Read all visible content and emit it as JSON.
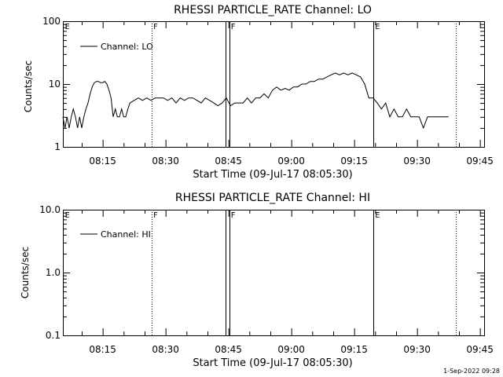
{
  "footer_timestamp": "1-Sep-2022 09:28",
  "chart_data": [
    {
      "type": "line",
      "title": "RHESSI PARTICLE_RATE Channel: LO",
      "xlabel": "Start Time (09-Jul-17 08:05:30)",
      "ylabel": "Counts/sec",
      "x_unit": "minutes after 08:05:30",
      "xlim": [
        0,
        100.5
      ],
      "yscale": "log",
      "ylim": [
        1,
        100
      ],
      "y_tick_labels": [
        {
          "value": 1,
          "label": "1"
        },
        {
          "value": 10,
          "label": "10"
        },
        {
          "value": 100,
          "label": "100"
        }
      ],
      "x_tick_labels": [
        {
          "value": 9.5,
          "label": "08:15"
        },
        {
          "value": 24.5,
          "label": "08:30"
        },
        {
          "value": 39.5,
          "label": "08:45"
        },
        {
          "value": 54.5,
          "label": "09:00"
        },
        {
          "value": 69.5,
          "label": "09:15"
        },
        {
          "value": 84.5,
          "label": "09:30"
        },
        {
          "value": 99.5,
          "label": "09:45"
        }
      ],
      "legend": {
        "position": "top-left",
        "entries": [
          "Channel: LO"
        ]
      },
      "series": [
        {
          "name": "Channel: LO",
          "x": [
            0,
            0.5,
            1,
            1.5,
            2,
            2.5,
            3,
            3.5,
            4,
            4.5,
            5,
            5.5,
            6,
            6.5,
            7,
            7.5,
            8,
            8.5,
            9,
            9.5,
            10,
            10.5,
            11,
            11.5,
            12,
            12.5,
            13,
            13.5,
            14,
            14.5,
            15,
            15.5,
            16,
            17,
            18,
            19,
            20,
            21,
            22,
            23,
            24,
            25,
            26,
            27,
            28,
            29,
            30,
            31,
            32,
            33,
            34,
            35,
            36,
            37,
            38,
            39,
            40,
            41,
            42,
            43,
            44,
            45,
            46,
            47,
            48,
            49,
            50,
            51,
            52,
            53,
            54,
            55,
            56,
            57,
            58,
            59,
            60,
            61,
            62,
            63,
            64,
            65,
            66,
            67,
            68,
            69,
            70,
            71,
            72,
            73,
            74,
            75,
            76,
            77,
            78,
            79,
            80,
            81,
            82,
            83,
            84,
            85,
            86,
            87,
            88,
            89,
            90,
            91,
            92
          ],
          "y": [
            3,
            2,
            3,
            2,
            3,
            4,
            3,
            2,
            3,
            2,
            3,
            4,
            5,
            7,
            9,
            10.5,
            11,
            11,
            10.5,
            10.5,
            11,
            10,
            8,
            6,
            3,
            4,
            3,
            3,
            4,
            3,
            3,
            4,
            5,
            5.5,
            6,
            5.5,
            6,
            5.5,
            6,
            6,
            6,
            5.5,
            6,
            5,
            6,
            5.5,
            6,
            6,
            5.5,
            5,
            6,
            5.5,
            5,
            4.5,
            5,
            6,
            4.5,
            5,
            5,
            5,
            6,
            5,
            6,
            6,
            7,
            6,
            8,
            9,
            8,
            8.5,
            8,
            9,
            9,
            10,
            10,
            11,
            11,
            12,
            12,
            13,
            14,
            15,
            14,
            15,
            14,
            15,
            14,
            13,
            10,
            6,
            6,
            5,
            4,
            5,
            3,
            4,
            3,
            3,
            4,
            3,
            3,
            3,
            2,
            3,
            3,
            3,
            3,
            3,
            3
          ]
        }
      ],
      "annotations": [
        {
          "label": "E",
          "x": 0.3
        },
        {
          "label": "F",
          "x": 21.4
        },
        {
          "label": "F",
          "x": 39.9
        },
        {
          "label": "E",
          "x": 74.3
        }
      ],
      "vertical_lines": [
        {
          "x": 21.2,
          "style": "dotted"
        },
        {
          "x": 38.9,
          "style": "solid"
        },
        {
          "x": 39.7,
          "style": "solid"
        },
        {
          "x": 74.1,
          "style": "solid"
        },
        {
          "x": 93.7,
          "style": "dotted"
        }
      ]
    },
    {
      "type": "line",
      "title": "RHESSI PARTICLE_RATE Channel: HI",
      "xlabel": "Start Time (09-Jul-17 08:05:30)",
      "ylabel": "Counts/sec",
      "x_unit": "minutes after 08:05:30",
      "xlim": [
        0,
        100.5
      ],
      "yscale": "log",
      "ylim": [
        0.1,
        10
      ],
      "y_tick_labels": [
        {
          "value": 0.1,
          "label": "0.1"
        },
        {
          "value": 1,
          "label": "1.0"
        },
        {
          "value": 10,
          "label": "10.0"
        }
      ],
      "x_tick_labels": [
        {
          "value": 9.5,
          "label": "08:15"
        },
        {
          "value": 24.5,
          "label": "08:30"
        },
        {
          "value": 39.5,
          "label": "08:45"
        },
        {
          "value": 54.5,
          "label": "09:00"
        },
        {
          "value": 69.5,
          "label": "09:15"
        },
        {
          "value": 84.5,
          "label": "09:30"
        },
        {
          "value": 99.5,
          "label": "09:45"
        }
      ],
      "legend": {
        "position": "top-left",
        "entries": [
          "Channel: HI"
        ]
      },
      "series": [
        {
          "name": "Channel: HI",
          "x": [],
          "y": []
        }
      ],
      "annotations": [
        {
          "label": "E",
          "x": 0.3
        },
        {
          "label": "F",
          "x": 21.4
        },
        {
          "label": "F",
          "x": 39.9
        },
        {
          "label": "E",
          "x": 74.3
        }
      ],
      "vertical_lines": [
        {
          "x": 21.2,
          "style": "dotted"
        },
        {
          "x": 38.9,
          "style": "solid"
        },
        {
          "x": 39.7,
          "style": "solid"
        },
        {
          "x": 74.1,
          "style": "solid"
        },
        {
          "x": 93.7,
          "style": "dotted"
        }
      ]
    }
  ]
}
